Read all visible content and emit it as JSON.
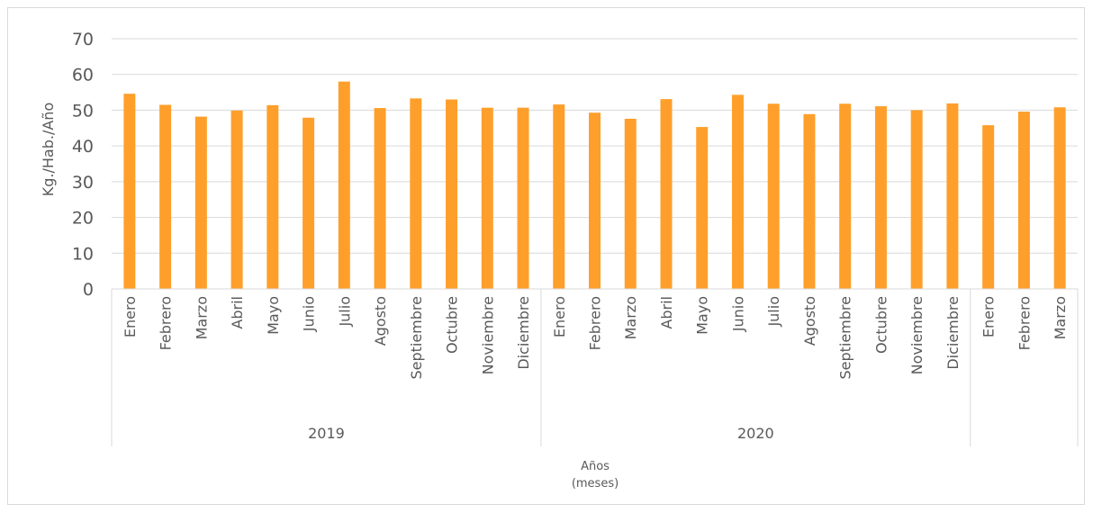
{
  "chart_data": {
    "type": "bar",
    "ylabel": "Kg./Hab./Año",
    "xlabel_line1": "Años",
    "xlabel_line2": "(meses)",
    "ylim": [
      0,
      70
    ],
    "yticks": [
      0,
      10,
      20,
      30,
      40,
      50,
      60,
      70
    ],
    "grid": true,
    "bar_color": "#ff9f2b",
    "grid_color": "#d9d9d9",
    "groups": [
      {
        "year": "2019",
        "months": [
          "Enero",
          "Febrero",
          "Marzo",
          "Abril",
          "Mayo",
          "Junio",
          "Julio",
          "Agosto",
          "Septiembre",
          "Octubre",
          "Noviembre",
          "Diciembre"
        ],
        "values": [
          54.6,
          51.5,
          48.2,
          49.9,
          51.4,
          47.9,
          58.0,
          50.6,
          53.3,
          53.0,
          50.7,
          50.7
        ]
      },
      {
        "year": "2020",
        "months": [
          "Enero",
          "Febrero",
          "Marzo",
          "Abril",
          "Mayo",
          "Junio",
          "Julio",
          "Agosto",
          "Septiembre",
          "Octubre",
          "Noviembre",
          "Diciembre"
        ],
        "values": [
          51.6,
          49.3,
          47.6,
          53.1,
          45.3,
          54.3,
          51.8,
          48.9,
          51.8,
          51.1,
          50.0,
          51.9
        ]
      },
      {
        "year": "",
        "months": [
          "Enero",
          "Febrero",
          "Marzo"
        ],
        "values": [
          45.8,
          49.6,
          50.8
        ]
      }
    ]
  }
}
